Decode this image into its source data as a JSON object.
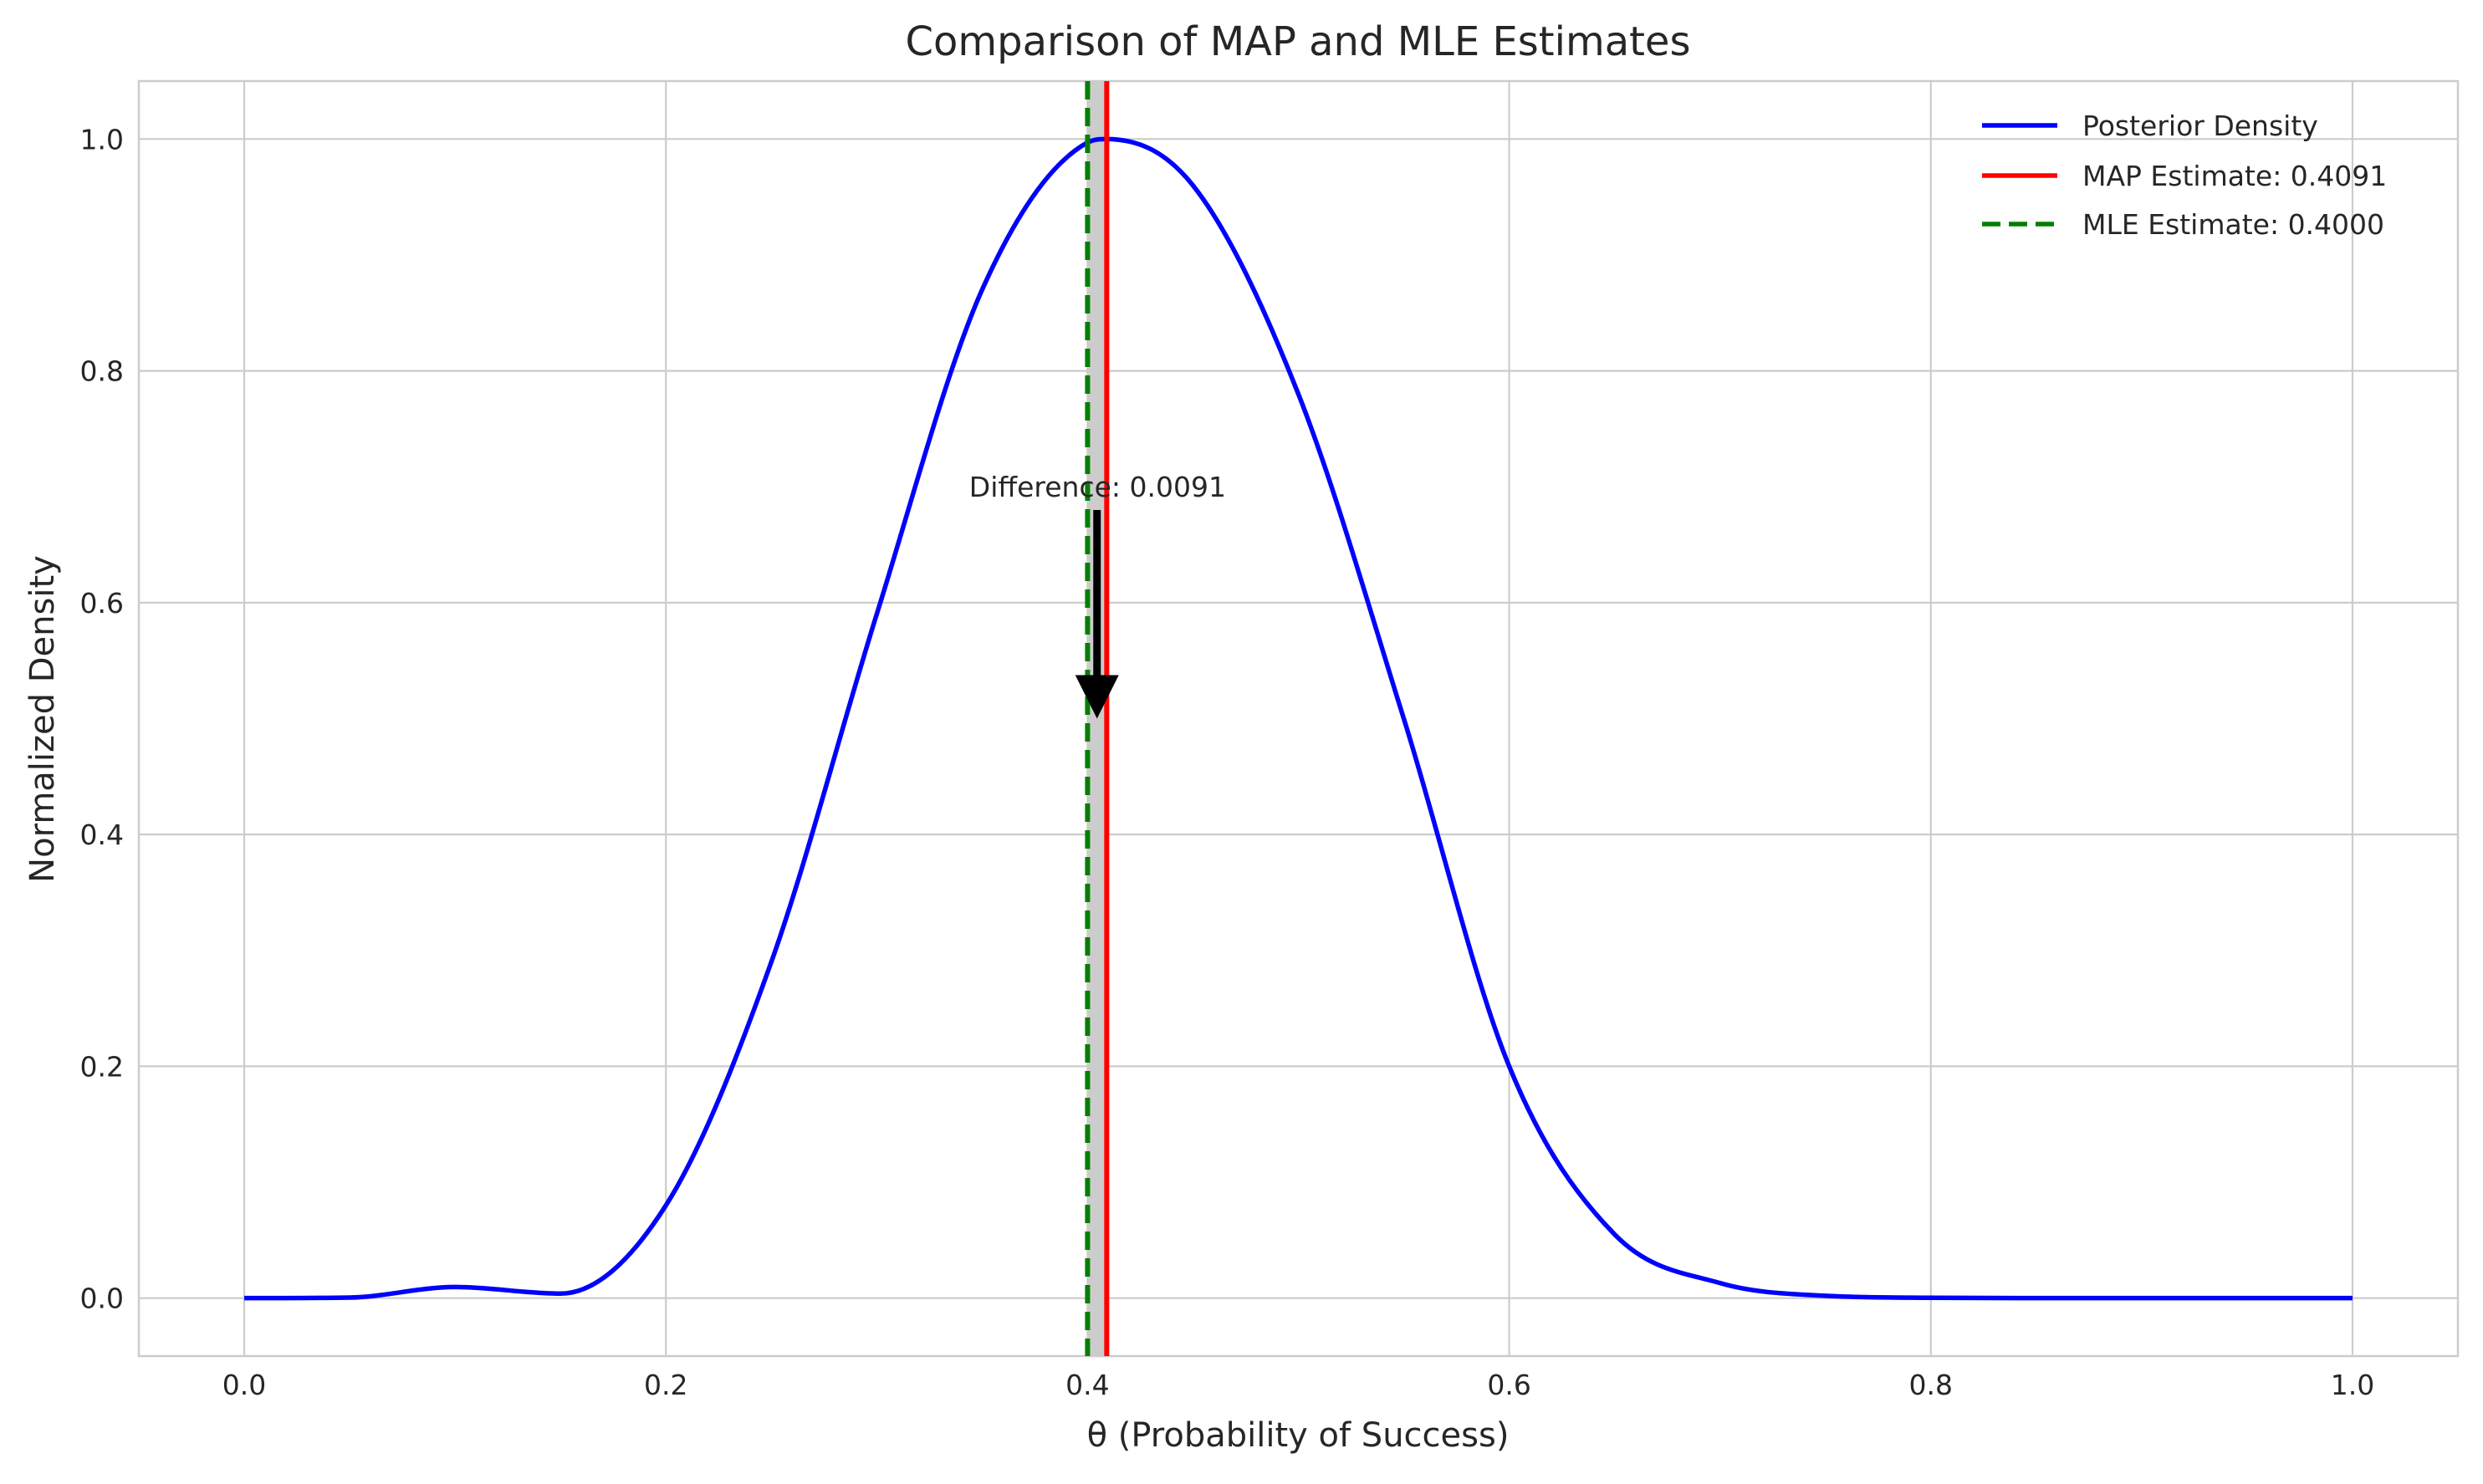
{
  "chart_data": {
    "type": "line",
    "title": "Comparison of MAP and MLE Estimates",
    "xlabel": "θ (Probability of Success)",
    "ylabel": "Normalized Density",
    "xlim": [
      -0.05,
      1.05
    ],
    "ylim": [
      -0.05,
      1.05
    ],
    "xticks": [
      0.0,
      0.2,
      0.4,
      0.6,
      0.8,
      1.0
    ],
    "xtick_labels": [
      "0.0",
      "0.2",
      "0.4",
      "0.6",
      "0.8",
      "1.0"
    ],
    "yticks": [
      0.0,
      0.2,
      0.4,
      0.6,
      0.8,
      1.0
    ],
    "ytick_labels": [
      "0.0",
      "0.2",
      "0.4",
      "0.6",
      "0.8",
      "1.0"
    ],
    "grid": true,
    "legend_position": "top-right",
    "series": [
      {
        "name": "Posterior Density",
        "style": "solid",
        "color": "#0000ff",
        "x": [
          0.0,
          0.05,
          0.1,
          0.15,
          0.2,
          0.25,
          0.3,
          0.35,
          0.4,
          0.4091,
          0.45,
          0.5,
          0.55,
          0.6,
          0.65,
          0.7,
          0.75,
          0.8,
          0.85,
          0.9,
          0.95,
          1.0
        ],
        "y": [
          0.0,
          0.0005,
          0.0096,
          0.0039,
          0.08,
          0.29,
          0.59,
          0.87,
          0.997,
          1.0,
          0.96,
          0.78,
          0.5,
          0.2,
          0.055,
          0.013,
          0.002,
          0.0003,
          0.0,
          0.0,
          0.0,
          0.0
        ]
      }
    ],
    "vlines": [
      {
        "name": "MAP Estimate: 0.4091",
        "x": 0.4091,
        "style": "solid",
        "color": "#ff0000"
      },
      {
        "name": "MLE Estimate: 0.4000",
        "x": 0.4,
        "style": "dashed",
        "color": "#008000"
      }
    ],
    "shaded_region": {
      "x": [
        0.4,
        0.4091
      ],
      "color": "#cccccc"
    },
    "annotation": {
      "text": "Difference: 0.0091",
      "text_at": [
        0.4,
        0.7
      ],
      "arrow_from": [
        0.4045,
        0.68
      ],
      "arrow_to": [
        0.4045,
        0.5
      ],
      "color": "#000000"
    }
  }
}
